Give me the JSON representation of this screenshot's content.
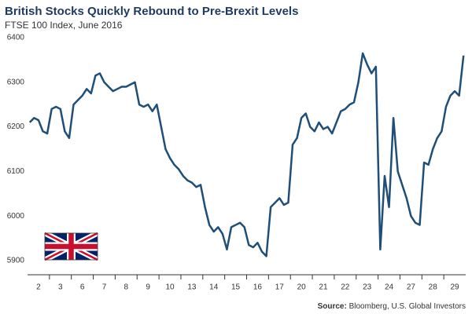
{
  "chart_data": {
    "type": "line",
    "title": "British Stocks Quickly Rebound to Pre-Brexit Levels",
    "subtitle": "FTSE 100 Index, June 2016",
    "source_label": "Source:",
    "source": "Bloomberg, U.S. Global Investors",
    "categories": [
      null,
      null,
      "2",
      null,
      null,
      null,
      null,
      "3",
      null,
      null,
      null,
      null,
      "6",
      null,
      null,
      null,
      null,
      "7",
      null,
      null,
      null,
      null,
      "8",
      null,
      null,
      null,
      null,
      "9",
      null,
      null,
      null,
      null,
      "10",
      null,
      null,
      null,
      null,
      "13",
      null,
      null,
      null,
      null,
      "14",
      null,
      null,
      null,
      null,
      "15",
      null,
      null,
      null,
      null,
      "16",
      null,
      null,
      null,
      null,
      "17",
      null,
      null,
      null,
      null,
      "20",
      null,
      null,
      null,
      null,
      "21",
      null,
      null,
      null,
      null,
      "22",
      null,
      null,
      null,
      null,
      "23",
      null,
      null,
      null,
      null,
      "24",
      null,
      null,
      null,
      null,
      "27",
      null,
      null,
      null,
      null,
      "28",
      null,
      null,
      null,
      null,
      "29",
      null,
      null
    ],
    "values": [
      6210,
      6220,
      6215,
      6190,
      6185,
      6240,
      6245,
      6240,
      6190,
      6175,
      6250,
      6260,
      6270,
      6285,
      6275,
      6315,
      6320,
      6300,
      6290,
      6280,
      6285,
      6290,
      6290,
      6295,
      6300,
      6250,
      6245,
      6250,
      6235,
      6250,
      6200,
      6150,
      6130,
      6115,
      6105,
      6090,
      6080,
      6075,
      6065,
      6070,
      6020,
      5980,
      5965,
      5975,
      5960,
      5925,
      5975,
      5980,
      5985,
      5975,
      5935,
      5930,
      5940,
      5920,
      5910,
      6020,
      6030,
      6040,
      6025,
      6030,
      6160,
      6175,
      6220,
      6230,
      6200,
      6190,
      6210,
      6195,
      6200,
      6185,
      6210,
      6235,
      6240,
      6250,
      6255,
      6300,
      6365,
      6340,
      6320,
      6335,
      5925,
      6090,
      6020,
      6220,
      6100,
      6070,
      6040,
      6000,
      5985,
      5980,
      6120,
      6115,
      6150,
      6175,
      6190,
      6245,
      6270,
      6280,
      6270,
      6360
    ],
    "color": "#1f4e79",
    "ylim": [
      5900,
      6400
    ],
    "yticks": [
      5900,
      6000,
      6100,
      6200,
      6300,
      6400
    ],
    "grid": false
  }
}
